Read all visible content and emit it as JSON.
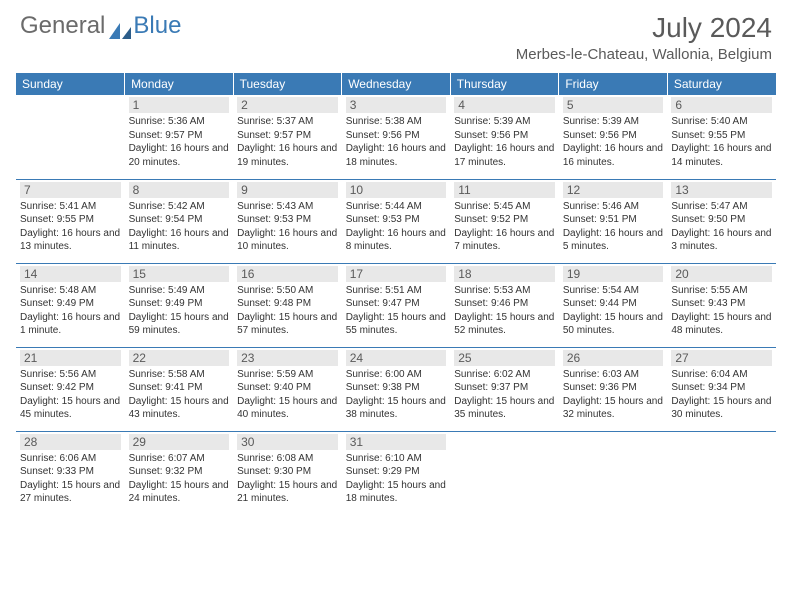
{
  "logo": {
    "general": "General",
    "blue": "Blue"
  },
  "month_title": "July 2024",
  "location": "Merbes-le-Chateau, Wallonia, Belgium",
  "colors": {
    "header_bg": "#3a7ab5",
    "header_text": "#ffffff",
    "daynum_bg": "#e8e8e8",
    "text": "#333333",
    "rule": "#3a7ab5"
  },
  "day_headers": [
    "Sunday",
    "Monday",
    "Tuesday",
    "Wednesday",
    "Thursday",
    "Friday",
    "Saturday"
  ],
  "weeks": [
    [
      {
        "n": "",
        "sunrise": "",
        "sunset": "",
        "daylight": ""
      },
      {
        "n": "1",
        "sunrise": "Sunrise: 5:36 AM",
        "sunset": "Sunset: 9:57 PM",
        "daylight": "Daylight: 16 hours and 20 minutes."
      },
      {
        "n": "2",
        "sunrise": "Sunrise: 5:37 AM",
        "sunset": "Sunset: 9:57 PM",
        "daylight": "Daylight: 16 hours and 19 minutes."
      },
      {
        "n": "3",
        "sunrise": "Sunrise: 5:38 AM",
        "sunset": "Sunset: 9:56 PM",
        "daylight": "Daylight: 16 hours and 18 minutes."
      },
      {
        "n": "4",
        "sunrise": "Sunrise: 5:39 AM",
        "sunset": "Sunset: 9:56 PM",
        "daylight": "Daylight: 16 hours and 17 minutes."
      },
      {
        "n": "5",
        "sunrise": "Sunrise: 5:39 AM",
        "sunset": "Sunset: 9:56 PM",
        "daylight": "Daylight: 16 hours and 16 minutes."
      },
      {
        "n": "6",
        "sunrise": "Sunrise: 5:40 AM",
        "sunset": "Sunset: 9:55 PM",
        "daylight": "Daylight: 16 hours and 14 minutes."
      }
    ],
    [
      {
        "n": "7",
        "sunrise": "Sunrise: 5:41 AM",
        "sunset": "Sunset: 9:55 PM",
        "daylight": "Daylight: 16 hours and 13 minutes."
      },
      {
        "n": "8",
        "sunrise": "Sunrise: 5:42 AM",
        "sunset": "Sunset: 9:54 PM",
        "daylight": "Daylight: 16 hours and 11 minutes."
      },
      {
        "n": "9",
        "sunrise": "Sunrise: 5:43 AM",
        "sunset": "Sunset: 9:53 PM",
        "daylight": "Daylight: 16 hours and 10 minutes."
      },
      {
        "n": "10",
        "sunrise": "Sunrise: 5:44 AM",
        "sunset": "Sunset: 9:53 PM",
        "daylight": "Daylight: 16 hours and 8 minutes."
      },
      {
        "n": "11",
        "sunrise": "Sunrise: 5:45 AM",
        "sunset": "Sunset: 9:52 PM",
        "daylight": "Daylight: 16 hours and 7 minutes."
      },
      {
        "n": "12",
        "sunrise": "Sunrise: 5:46 AM",
        "sunset": "Sunset: 9:51 PM",
        "daylight": "Daylight: 16 hours and 5 minutes."
      },
      {
        "n": "13",
        "sunrise": "Sunrise: 5:47 AM",
        "sunset": "Sunset: 9:50 PM",
        "daylight": "Daylight: 16 hours and 3 minutes."
      }
    ],
    [
      {
        "n": "14",
        "sunrise": "Sunrise: 5:48 AM",
        "sunset": "Sunset: 9:49 PM",
        "daylight": "Daylight: 16 hours and 1 minute."
      },
      {
        "n": "15",
        "sunrise": "Sunrise: 5:49 AM",
        "sunset": "Sunset: 9:49 PM",
        "daylight": "Daylight: 15 hours and 59 minutes."
      },
      {
        "n": "16",
        "sunrise": "Sunrise: 5:50 AM",
        "sunset": "Sunset: 9:48 PM",
        "daylight": "Daylight: 15 hours and 57 minutes."
      },
      {
        "n": "17",
        "sunrise": "Sunrise: 5:51 AM",
        "sunset": "Sunset: 9:47 PM",
        "daylight": "Daylight: 15 hours and 55 minutes."
      },
      {
        "n": "18",
        "sunrise": "Sunrise: 5:53 AM",
        "sunset": "Sunset: 9:46 PM",
        "daylight": "Daylight: 15 hours and 52 minutes."
      },
      {
        "n": "19",
        "sunrise": "Sunrise: 5:54 AM",
        "sunset": "Sunset: 9:44 PM",
        "daylight": "Daylight: 15 hours and 50 minutes."
      },
      {
        "n": "20",
        "sunrise": "Sunrise: 5:55 AM",
        "sunset": "Sunset: 9:43 PM",
        "daylight": "Daylight: 15 hours and 48 minutes."
      }
    ],
    [
      {
        "n": "21",
        "sunrise": "Sunrise: 5:56 AM",
        "sunset": "Sunset: 9:42 PM",
        "daylight": "Daylight: 15 hours and 45 minutes."
      },
      {
        "n": "22",
        "sunrise": "Sunrise: 5:58 AM",
        "sunset": "Sunset: 9:41 PM",
        "daylight": "Daylight: 15 hours and 43 minutes."
      },
      {
        "n": "23",
        "sunrise": "Sunrise: 5:59 AM",
        "sunset": "Sunset: 9:40 PM",
        "daylight": "Daylight: 15 hours and 40 minutes."
      },
      {
        "n": "24",
        "sunrise": "Sunrise: 6:00 AM",
        "sunset": "Sunset: 9:38 PM",
        "daylight": "Daylight: 15 hours and 38 minutes."
      },
      {
        "n": "25",
        "sunrise": "Sunrise: 6:02 AM",
        "sunset": "Sunset: 9:37 PM",
        "daylight": "Daylight: 15 hours and 35 minutes."
      },
      {
        "n": "26",
        "sunrise": "Sunrise: 6:03 AM",
        "sunset": "Sunset: 9:36 PM",
        "daylight": "Daylight: 15 hours and 32 minutes."
      },
      {
        "n": "27",
        "sunrise": "Sunrise: 6:04 AM",
        "sunset": "Sunset: 9:34 PM",
        "daylight": "Daylight: 15 hours and 30 minutes."
      }
    ],
    [
      {
        "n": "28",
        "sunrise": "Sunrise: 6:06 AM",
        "sunset": "Sunset: 9:33 PM",
        "daylight": "Daylight: 15 hours and 27 minutes."
      },
      {
        "n": "29",
        "sunrise": "Sunrise: 6:07 AM",
        "sunset": "Sunset: 9:32 PM",
        "daylight": "Daylight: 15 hours and 24 minutes."
      },
      {
        "n": "30",
        "sunrise": "Sunrise: 6:08 AM",
        "sunset": "Sunset: 9:30 PM",
        "daylight": "Daylight: 15 hours and 21 minutes."
      },
      {
        "n": "31",
        "sunrise": "Sunrise: 6:10 AM",
        "sunset": "Sunset: 9:29 PM",
        "daylight": "Daylight: 15 hours and 18 minutes."
      },
      {
        "n": "",
        "sunrise": "",
        "sunset": "",
        "daylight": ""
      },
      {
        "n": "",
        "sunrise": "",
        "sunset": "",
        "daylight": ""
      },
      {
        "n": "",
        "sunrise": "",
        "sunset": "",
        "daylight": ""
      }
    ]
  ]
}
